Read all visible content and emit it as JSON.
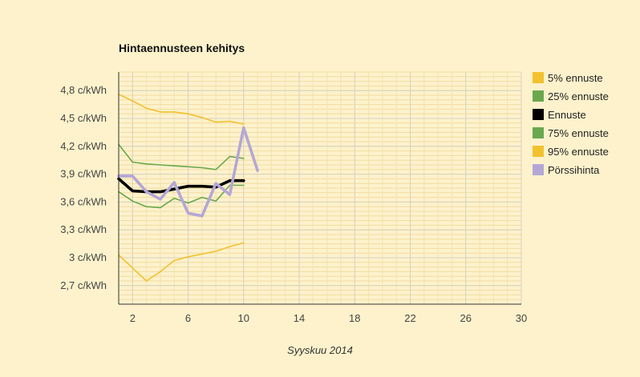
{
  "chart_data": {
    "type": "line",
    "title": "Hintaennusteen kehitys",
    "xlabel": "Syyskuu 2014",
    "ylabel": "",
    "xlim": [
      1,
      30
    ],
    "ylim": [
      2.5,
      5.0
    ],
    "x_ticks": [
      2,
      6,
      10,
      14,
      18,
      22,
      26,
      30
    ],
    "x_tick_labels": [
      "2",
      "6",
      "10",
      "14",
      "18",
      "22",
      "26",
      "30"
    ],
    "y_ticks": [
      2.7,
      3.0,
      3.3,
      3.6,
      3.9,
      4.2,
      4.5,
      4.8
    ],
    "y_tick_labels": [
      "2,7 c/kWh",
      "3 c/kWh",
      "3,3 c/kWh",
      "3,6 c/kWh",
      "3,9 c/kWh",
      "4,2 c/kWh",
      "4,5 c/kWh",
      "4,8 c/kWh"
    ],
    "legend_position": "right",
    "series": [
      {
        "name": "5% ennuste",
        "color": "#f2c12e",
        "width": 1.6,
        "x": [
          1,
          2,
          3,
          4,
          5,
          6,
          7,
          8,
          9,
          10
        ],
        "values": [
          3.03,
          2.89,
          2.75,
          2.85,
          2.97,
          3.01,
          3.04,
          3.07,
          3.12,
          3.16
        ]
      },
      {
        "name": "25% ennuste",
        "color": "#6aa84f",
        "width": 1.6,
        "x": [
          1,
          2,
          3,
          4,
          5,
          6,
          7,
          8,
          9,
          10
        ],
        "values": [
          3.71,
          3.61,
          3.55,
          3.54,
          3.64,
          3.59,
          3.65,
          3.61,
          3.78,
          3.78
        ]
      },
      {
        "name": "Ennuste",
        "color": "#000000",
        "width": 3.6,
        "x": [
          1,
          2,
          3,
          4,
          5,
          6,
          7,
          8,
          9,
          10
        ],
        "values": [
          3.85,
          3.72,
          3.71,
          3.71,
          3.74,
          3.77,
          3.77,
          3.76,
          3.83,
          3.83
        ]
      },
      {
        "name": "75% ennuste",
        "color": "#6aa84f",
        "width": 1.6,
        "x": [
          1,
          2,
          3,
          4,
          5,
          6,
          7,
          8,
          9,
          10
        ],
        "values": [
          4.22,
          4.03,
          4.01,
          4.0,
          3.99,
          3.98,
          3.97,
          3.95,
          4.09,
          4.07
        ]
      },
      {
        "name": "95% ennuste",
        "color": "#f2c12e",
        "width": 1.6,
        "x": [
          1,
          2,
          3,
          4,
          5,
          6,
          7,
          8,
          9,
          10
        ],
        "values": [
          4.76,
          4.69,
          4.61,
          4.57,
          4.57,
          4.55,
          4.51,
          4.46,
          4.47,
          4.44
        ]
      },
      {
        "name": "Pörssihinta",
        "color": "#b4a7d6",
        "width": 3.6,
        "x": [
          1,
          2,
          3,
          4,
          5,
          6,
          7,
          8,
          9,
          10,
          11
        ],
        "values": [
          3.88,
          3.88,
          3.71,
          3.63,
          3.81,
          3.48,
          3.45,
          3.8,
          3.68,
          4.4,
          3.94
        ]
      }
    ]
  }
}
